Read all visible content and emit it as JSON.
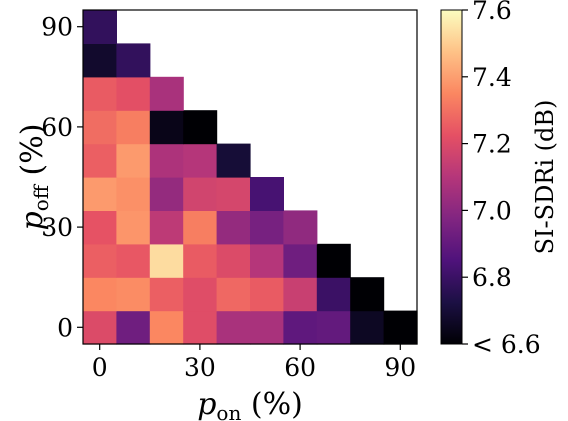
{
  "chart_data": {
    "type": "heatmap",
    "xlabel": {
      "main": "p",
      "sub": "on",
      "unit": " (%)"
    },
    "ylabel": {
      "main": "p",
      "sub": "off",
      "unit": " (%)"
    },
    "x_categories": [
      0,
      10,
      20,
      30,
      40,
      50,
      60,
      70,
      80,
      90
    ],
    "y_categories": [
      0,
      10,
      20,
      30,
      40,
      50,
      60,
      70,
      80,
      90
    ],
    "xticks": [
      "0",
      "30",
      "60",
      "90"
    ],
    "yticks": [
      "0",
      "30",
      "60",
      "90"
    ],
    "colormap": "magma",
    "colorbar": {
      "label": "SI-SDRi (dB)",
      "vmin": 6.6,
      "vmax": 7.6,
      "ticks": [
        {
          "value": 6.6,
          "label": "< 6.6"
        },
        {
          "value": 6.8,
          "label": "6.8"
        },
        {
          "value": 7.0,
          "label": "7.0"
        },
        {
          "value": 7.2,
          "label": "7.2"
        },
        {
          "value": 7.4,
          "label": "7.4"
        },
        {
          "value": 7.6,
          "label": "7.6"
        }
      ]
    },
    "values": [
      [
        7.2,
        6.93,
        7.35,
        7.21,
        7.07,
        7.07,
        6.89,
        6.9,
        6.66,
        6.6
      ],
      [
        7.35,
        7.36,
        7.26,
        7.21,
        7.28,
        7.25,
        7.15,
        6.8,
        6.6,
        null
      ],
      [
        7.26,
        7.24,
        7.53,
        7.25,
        7.2,
        7.1,
        6.93,
        6.6,
        null,
        null
      ],
      [
        7.23,
        7.38,
        7.12,
        7.33,
        7.02,
        6.95,
        7.01,
        null,
        null,
        null
      ],
      [
        7.39,
        7.37,
        7.02,
        7.17,
        7.18,
        6.83,
        null,
        null,
        null,
        null
      ],
      [
        7.26,
        7.39,
        7.08,
        7.1,
        6.7,
        null,
        null,
        null,
        null,
        null
      ],
      [
        7.29,
        7.33,
        6.64,
        6.6,
        null,
        null,
        null,
        null,
        null,
        null
      ],
      [
        7.25,
        7.22,
        7.07,
        null,
        null,
        null,
        null,
        null,
        null,
        null
      ],
      [
        6.68,
        6.78,
        null,
        null,
        null,
        null,
        null,
        null,
        null,
        null
      ],
      [
        6.78,
        null,
        null,
        null,
        null,
        null,
        null,
        null,
        null,
        null
      ]
    ]
  }
}
